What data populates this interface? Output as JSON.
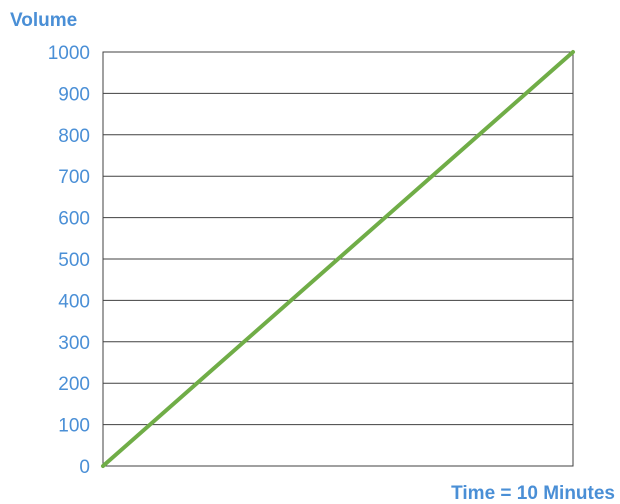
{
  "colors": {
    "axis_text": "#4a8fd6",
    "gridline": "#404040",
    "series_line": "#70ad47",
    "background": "#ffffff"
  },
  "chart_data": {
    "type": "line",
    "title": "",
    "xlabel": "Time = 10 Minutes",
    "ylabel": "Volume",
    "ylim": [
      0,
      1000
    ],
    "y_ticks": [
      0,
      100,
      200,
      300,
      400,
      500,
      600,
      700,
      800,
      900,
      1000
    ],
    "xlim": [
      0,
      10
    ],
    "grid": true,
    "legend": "none",
    "series": [
      {
        "x": [
          0,
          10
        ],
        "y": [
          0,
          1000
        ]
      }
    ]
  }
}
